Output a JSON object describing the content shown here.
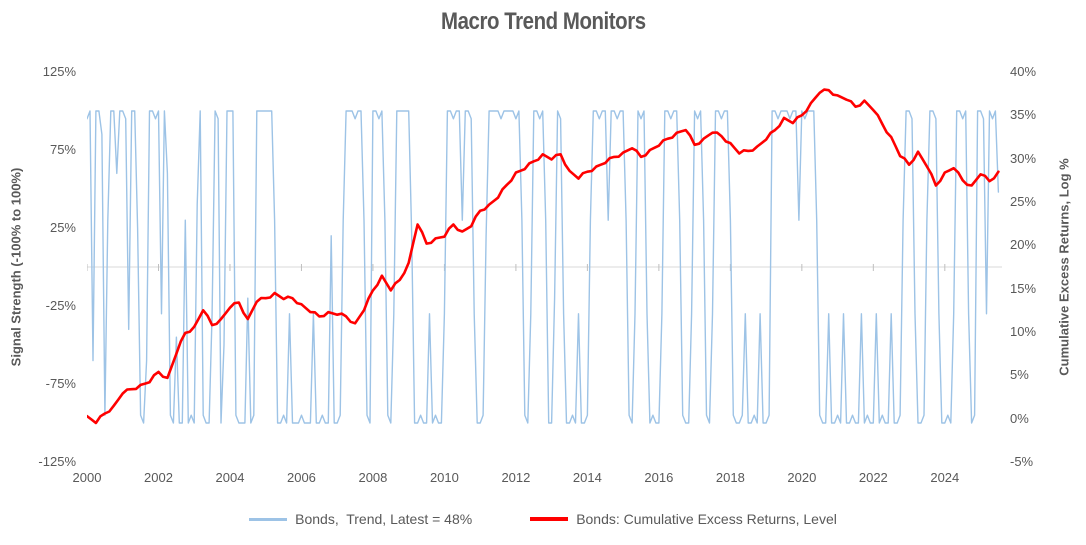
{
  "title": "Macro Trend Monitors",
  "colors": {
    "trend_line": "#9DC3E6",
    "returns_line": "#FF0000",
    "gridline": "#D9D9D9",
    "axis_tick_mark": "#BFBFBF",
    "text": "#595959"
  },
  "chart_data": {
    "type": "line",
    "title": "Macro Trend Monitors",
    "grid": "single horizontal gridline at left-axis 0%",
    "legend_position": "bottom center",
    "legend": [
      {
        "label": "Bonds,  Trend, Latest = 48%",
        "color": "#9DC3E6"
      },
      {
        "label": "Bonds: Cumulative Excess Returns, Level",
        "color": "#FF0000"
      }
    ],
    "axes": {
      "left": {
        "title": "Signal Strength (-100% to 100%)",
        "range": [
          -125,
          125
        ],
        "tick_values": [
          125,
          75,
          25,
          -25,
          -75,
          -125
        ],
        "tick_labels": [
          "125%",
          "75%",
          "25%",
          "-25%",
          "-75%",
          "-125%"
        ]
      },
      "right": {
        "title": "Cumulative Excess Returns, Log %",
        "range": [
          -5,
          40
        ],
        "tick_values": [
          40,
          35,
          30,
          25,
          20,
          15,
          10,
          5,
          0,
          -5
        ],
        "tick_labels": [
          "40%",
          "35%",
          "30%",
          "25%",
          "20%",
          "15%",
          "10%",
          "5%",
          "0%",
          "-5%"
        ]
      },
      "x": {
        "range": [
          2000,
          2025.6
        ],
        "tick_values": [
          2000,
          2002,
          2004,
          2006,
          2008,
          2010,
          2012,
          2014,
          2016,
          2018,
          2020,
          2022,
          2024
        ],
        "tick_labels": [
          "2000",
          "2002",
          "2004",
          "2006",
          "2008",
          "2010",
          "2012",
          "2014",
          "2016",
          "2018",
          "2020",
          "2022",
          "2024"
        ]
      }
    },
    "series": [
      {
        "name": "Bonds, Trend",
        "axis": "left",
        "unit": "percent",
        "color": "#9DC3E6",
        "latest": 48,
        "start": 2000.0,
        "step": 0.0833333,
        "values": [
          95,
          100,
          -60,
          100,
          100,
          85,
          -95,
          30,
          100,
          100,
          60,
          100,
          100,
          95,
          -40,
          100,
          100,
          25,
          -95,
          -100,
          -60,
          100,
          100,
          95,
          100,
          -30,
          100,
          60,
          -95,
          -100,
          -45,
          -100,
          -100,
          30,
          -100,
          -95,
          -100,
          40,
          100,
          -95,
          -100,
          -100,
          -30,
          100,
          95,
          -100,
          -50,
          100,
          100,
          100,
          -95,
          -100,
          -100,
          -100,
          -20,
          -100,
          -95,
          100,
          100,
          100,
          100,
          100,
          100,
          30,
          -100,
          -100,
          -95,
          -100,
          -30,
          -100,
          -100,
          -100,
          -95,
          -100,
          -100,
          -100,
          -30,
          -100,
          -100,
          -95,
          -100,
          -100,
          20,
          -100,
          -100,
          -95,
          30,
          100,
          100,
          100,
          95,
          100,
          100,
          30,
          -95,
          -100,
          100,
          100,
          95,
          100,
          30,
          -95,
          -100,
          -30,
          100,
          100,
          100,
          100,
          100,
          20,
          -100,
          -100,
          -95,
          -100,
          -100,
          -30,
          -100,
          -95,
          -100,
          -100,
          -30,
          100,
          100,
          95,
          100,
          100,
          30,
          100,
          100,
          95,
          -30,
          -100,
          -100,
          -95,
          20,
          100,
          100,
          100,
          100,
          95,
          100,
          100,
          100,
          100,
          95,
          100,
          30,
          -95,
          -100,
          -30,
          100,
          100,
          95,
          100,
          30,
          -100,
          -100,
          -20,
          100,
          95,
          -30,
          -100,
          -100,
          -95,
          -100,
          -30,
          -100,
          -100,
          -95,
          30,
          100,
          100,
          95,
          100,
          100,
          30,
          100,
          100,
          95,
          100,
          100,
          30,
          -95,
          -100,
          -30,
          100,
          95,
          100,
          -30,
          -100,
          -95,
          -100,
          -100,
          -30,
          100,
          100,
          95,
          100,
          100,
          30,
          -95,
          -100,
          -100,
          -30,
          100,
          95,
          100,
          30,
          -95,
          -100,
          -30,
          100,
          100,
          95,
          100,
          100,
          30,
          -95,
          -100,
          -100,
          -95,
          -30,
          -100,
          -100,
          -95,
          -100,
          -30,
          -100,
          -100,
          -95,
          100,
          100,
          95,
          100,
          100,
          100,
          95,
          100,
          100,
          30,
          100,
          95,
          100,
          100,
          100,
          30,
          -95,
          -100,
          -100,
          -30,
          -100,
          -100,
          -95,
          -100,
          -30,
          -100,
          -100,
          -95,
          -100,
          -100,
          -30,
          -100,
          -95,
          -100,
          -100,
          -30,
          -100,
          -95,
          -100,
          -100,
          -30,
          -100,
          -100,
          -95,
          30,
          100,
          100,
          95,
          -30,
          -100,
          -100,
          -95,
          30,
          100,
          100,
          95,
          -30,
          -100,
          -100,
          -95,
          -100,
          -30,
          100,
          100,
          95,
          100,
          -30,
          -100,
          -95,
          100,
          100,
          95,
          -30,
          100,
          95,
          100,
          48
        ]
      },
      {
        "name": "Bonds: Cumulative Excess Returns, Level",
        "axis": "right",
        "unit": "percent",
        "color": "#FF0000",
        "start": 2000.0,
        "step": 0.25,
        "values": [
          0.3,
          -0.5,
          0.6,
          1.5,
          2.9,
          3.4,
          3.9,
          4.2,
          5.4,
          4.7,
          7.5,
          9.9,
          10.6,
          12.5,
          10.8,
          11.5,
          12.8,
          13.4,
          11.5,
          13.5,
          13.9,
          14.5,
          13.8,
          13.9,
          13.2,
          12.3,
          11.8,
          12.3,
          12.0,
          11.8,
          11.0,
          12.5,
          14.8,
          16.5,
          14.8,
          16.0,
          18.0,
          22.4,
          20.2,
          20.8,
          21.0,
          22.4,
          21.6,
          22.2,
          24.0,
          24.7,
          25.5,
          27.0,
          28.4,
          28.8,
          29.7,
          30.5,
          29.9,
          30.5,
          28.6,
          27.7,
          28.5,
          29.1,
          29.5,
          30.2,
          30.7,
          31.2,
          30.2,
          31.0,
          31.5,
          32.3,
          33.0,
          33.3,
          31.6,
          32.3,
          33.0,
          32.6,
          31.8,
          30.6,
          30.9,
          31.4,
          32.2,
          33.3,
          34.7,
          34.1,
          35.0,
          36.4,
          37.6,
          37.9,
          37.3,
          36.8,
          36.0,
          36.7,
          35.6,
          34.0,
          32.5,
          30.3,
          29.3,
          30.8,
          29.1,
          26.9,
          28.4,
          28.9,
          27.5,
          26.9,
          28.2,
          27.4,
          28.5
        ]
      }
    ]
  }
}
